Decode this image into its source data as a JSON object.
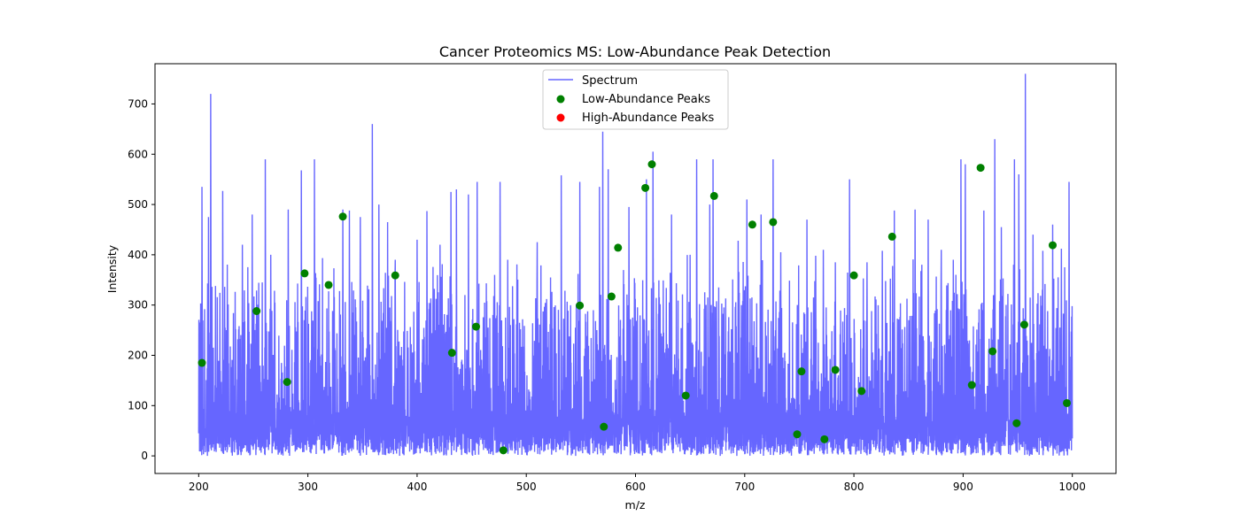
{
  "chart_data": {
    "type": "line",
    "title": "Cancer Proteomics MS: Low-Abundance Peak Detection",
    "xlabel": "m/z",
    "ylabel": "Intensity",
    "xlim": [
      160,
      1040
    ],
    "ylim": [
      -35,
      780
    ],
    "x_ticks": [
      200,
      300,
      400,
      500,
      600,
      700,
      800,
      900,
      1000
    ],
    "y_ticks": [
      0,
      100,
      200,
      300,
      400,
      500,
      600,
      700
    ],
    "grid": false,
    "legend_position": "top-center",
    "series": [
      {
        "name": "Spectrum",
        "kind": "line",
        "color": "#6666ff",
        "x_range": [
          200,
          1000
        ],
        "baseline_range": [
          10,
          300
        ],
        "tall_peaks": [
          {
            "x": 203,
            "y": 535
          },
          {
            "x": 209,
            "y": 475
          },
          {
            "x": 211,
            "y": 720
          },
          {
            "x": 222,
            "y": 527
          },
          {
            "x": 240,
            "y": 420
          },
          {
            "x": 249,
            "y": 480
          },
          {
            "x": 261,
            "y": 590
          },
          {
            "x": 266,
            "y": 400
          },
          {
            "x": 282,
            "y": 490
          },
          {
            "x": 294,
            "y": 568
          },
          {
            "x": 306,
            "y": 590
          },
          {
            "x": 332,
            "y": 490
          },
          {
            "x": 338,
            "y": 488
          },
          {
            "x": 348,
            "y": 475
          },
          {
            "x": 359,
            "y": 660
          },
          {
            "x": 365,
            "y": 500
          },
          {
            "x": 373,
            "y": 465
          },
          {
            "x": 380,
            "y": 390
          },
          {
            "x": 400,
            "y": 430
          },
          {
            "x": 409,
            "y": 487
          },
          {
            "x": 421,
            "y": 420
          },
          {
            "x": 431,
            "y": 525
          },
          {
            "x": 436,
            "y": 530
          },
          {
            "x": 447,
            "y": 520
          },
          {
            "x": 455,
            "y": 545
          },
          {
            "x": 471,
            "y": 360
          },
          {
            "x": 476,
            "y": 545
          },
          {
            "x": 483,
            "y": 390
          },
          {
            "x": 510,
            "y": 425
          },
          {
            "x": 532,
            "y": 558
          },
          {
            "x": 549,
            "y": 545
          },
          {
            "x": 567,
            "y": 535
          },
          {
            "x": 570,
            "y": 645
          },
          {
            "x": 575,
            "y": 570
          },
          {
            "x": 594,
            "y": 495
          },
          {
            "x": 610,
            "y": 550
          },
          {
            "x": 616,
            "y": 605
          },
          {
            "x": 633,
            "y": 480
          },
          {
            "x": 650,
            "y": 400
          },
          {
            "x": 656,
            "y": 590
          },
          {
            "x": 668,
            "y": 500
          },
          {
            "x": 671,
            "y": 590
          },
          {
            "x": 694,
            "y": 428
          },
          {
            "x": 702,
            "y": 510
          },
          {
            "x": 715,
            "y": 480
          },
          {
            "x": 726,
            "y": 590
          },
          {
            "x": 733,
            "y": 405
          },
          {
            "x": 757,
            "y": 470
          },
          {
            "x": 765,
            "y": 398
          },
          {
            "x": 772,
            "y": 410
          },
          {
            "x": 783,
            "y": 385
          },
          {
            "x": 796,
            "y": 550
          },
          {
            "x": 812,
            "y": 385
          },
          {
            "x": 826,
            "y": 408
          },
          {
            "x": 837,
            "y": 488
          },
          {
            "x": 856,
            "y": 490
          },
          {
            "x": 868,
            "y": 470
          },
          {
            "x": 880,
            "y": 410
          },
          {
            "x": 891,
            "y": 390
          },
          {
            "x": 898,
            "y": 590
          },
          {
            "x": 902,
            "y": 580
          },
          {
            "x": 919,
            "y": 488
          },
          {
            "x": 929,
            "y": 630
          },
          {
            "x": 935,
            "y": 455
          },
          {
            "x": 947,
            "y": 590
          },
          {
            "x": 951,
            "y": 560
          },
          {
            "x": 957,
            "y": 760
          },
          {
            "x": 964,
            "y": 440
          },
          {
            "x": 973,
            "y": 408
          },
          {
            "x": 982,
            "y": 460
          },
          {
            "x": 990,
            "y": 412
          },
          {
            "x": 997,
            "y": 545
          }
        ]
      },
      {
        "name": "Low-Abundance Peaks",
        "kind": "scatter",
        "color": "#008000",
        "points": [
          {
            "x": 203,
            "y": 185
          },
          {
            "x": 253,
            "y": 288
          },
          {
            "x": 281,
            "y": 147
          },
          {
            "x": 297,
            "y": 363
          },
          {
            "x": 319,
            "y": 340
          },
          {
            "x": 332,
            "y": 476
          },
          {
            "x": 380,
            "y": 359
          },
          {
            "x": 432,
            "y": 205
          },
          {
            "x": 454,
            "y": 257
          },
          {
            "x": 479,
            "y": 11
          },
          {
            "x": 549,
            "y": 299
          },
          {
            "x": 571,
            "y": 58
          },
          {
            "x": 578,
            "y": 317
          },
          {
            "x": 584,
            "y": 414
          },
          {
            "x": 609,
            "y": 533
          },
          {
            "x": 615,
            "y": 580
          },
          {
            "x": 646,
            "y": 120
          },
          {
            "x": 672,
            "y": 517
          },
          {
            "x": 707,
            "y": 460
          },
          {
            "x": 726,
            "y": 465
          },
          {
            "x": 748,
            "y": 43
          },
          {
            "x": 752,
            "y": 168
          },
          {
            "x": 773,
            "y": 33
          },
          {
            "x": 783,
            "y": 171
          },
          {
            "x": 800,
            "y": 359
          },
          {
            "x": 807,
            "y": 129
          },
          {
            "x": 835,
            "y": 436
          },
          {
            "x": 908,
            "y": 141
          },
          {
            "x": 916,
            "y": 573
          },
          {
            "x": 927,
            "y": 208
          },
          {
            "x": 949,
            "y": 65
          },
          {
            "x": 956,
            "y": 261
          },
          {
            "x": 982,
            "y": 419
          },
          {
            "x": 995,
            "y": 105
          }
        ]
      },
      {
        "name": "High-Abundance Peaks",
        "kind": "scatter",
        "color": "#ff0000",
        "points": []
      }
    ]
  }
}
